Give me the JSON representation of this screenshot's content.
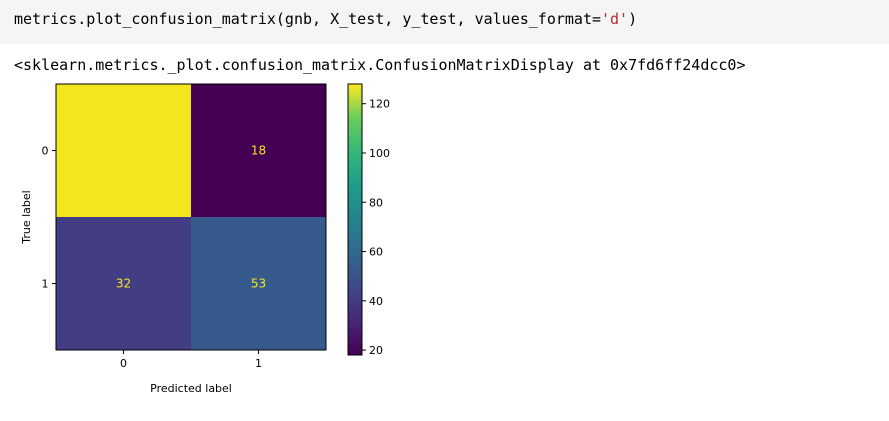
{
  "cell": {
    "code_prefix": "metrics.plot_confusion_matrix(gnb, X_test, y_test, values_format=",
    "code_string": "'d'",
    "code_suffix": ")",
    "output_repr": "<sklearn.metrics._plot.confusion_matrix.ConfusionMatrixDisplay at 0x7fd6ff24dcc0>"
  },
  "chart_data": {
    "type": "heatmap",
    "title": "",
    "xlabel": "Predicted label",
    "ylabel": "True label",
    "x_categories": [
      "0",
      "1"
    ],
    "y_categories": [
      "0",
      "1"
    ],
    "matrix": [
      [
        128,
        18
      ],
      [
        32,
        53
      ]
    ],
    "colormap": "viridis",
    "colorbar": {
      "vmin": 18,
      "vmax": 128,
      "ticks": [
        20,
        40,
        60,
        80,
        100,
        120
      ]
    },
    "cell_colors": [
      [
        "#f4e61e",
        "#440154"
      ],
      [
        "#433e84",
        "#375a8c"
      ]
    ],
    "text_color": "#f4e61e",
    "grid": false
  }
}
